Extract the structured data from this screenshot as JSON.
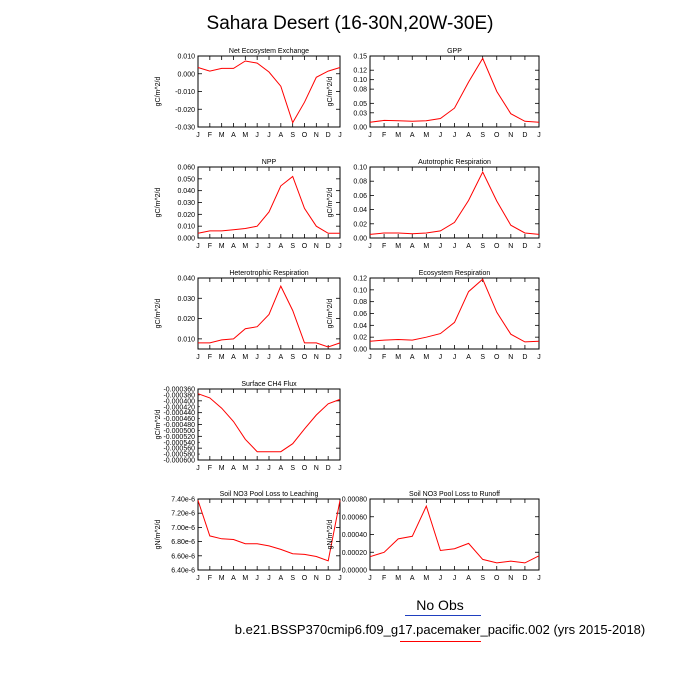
{
  "title": "Sahara Desert (16-30N,20W-30E)",
  "legend": {
    "label": "No Obs",
    "line_colors": [
      "#1f3fbf",
      "#ff0000"
    ]
  },
  "footer": "b.e21.BSSP370cmip6.f09_g17.pacemaker_pacific.002 (yrs 2015-2018)",
  "chart_data": [
    {
      "type": "line",
      "title": "Net Ecosystem Exchange",
      "ylabel": "gC/m^2/d",
      "categories": [
        "J",
        "F",
        "M",
        "A",
        "M",
        "J",
        "J",
        "A",
        "S",
        "O",
        "N",
        "D",
        "J"
      ],
      "ylim": [
        -0.03,
        0.01
      ],
      "yticks": [
        0.01,
        0.0,
        -0.01,
        -0.02,
        -0.03
      ],
      "yticklabels": [
        "0.010",
        "0.000",
        "-0.010",
        "-0.020",
        "-0.030"
      ],
      "color": "#ff0000",
      "values": [
        0.0035,
        0.0015,
        0.003,
        0.003,
        0.0072,
        0.006,
        0.001,
        -0.007,
        -0.0275,
        -0.016,
        -0.002,
        0.0015,
        0.0035
      ]
    },
    {
      "type": "line",
      "title": "GPP",
      "ylabel": "gC/m^2/d",
      "categories": [
        "J",
        "F",
        "M",
        "A",
        "M",
        "J",
        "J",
        "A",
        "S",
        "O",
        "N",
        "D",
        "J"
      ],
      "ylim": [
        0,
        0.15
      ],
      "yticks": [
        0.15,
        0.12,
        0.1,
        0.08,
        0.05,
        0.03,
        0.0
      ],
      "yticklabels": [
        "0.15",
        "0.12",
        "0.10",
        "0.08",
        "0.05",
        "0.03",
        "0.00"
      ],
      "color": "#ff0000",
      "values": [
        0.01,
        0.014,
        0.013,
        0.012,
        0.013,
        0.018,
        0.04,
        0.095,
        0.145,
        0.075,
        0.028,
        0.012,
        0.01
      ]
    },
    {
      "type": "line",
      "title": "NPP",
      "ylabel": "gC/m^2/d",
      "categories": [
        "J",
        "F",
        "M",
        "A",
        "M",
        "J",
        "J",
        "A",
        "S",
        "O",
        "N",
        "D",
        "J"
      ],
      "ylim": [
        0,
        0.06
      ],
      "yticks": [
        0.06,
        0.05,
        0.04,
        0.03,
        0.02,
        0.01,
        0.0
      ],
      "yticklabels": [
        "0.060",
        "0.050",
        "0.040",
        "0.030",
        "0.020",
        "0.010",
        "0.000"
      ],
      "color": "#ff0000",
      "values": [
        0.004,
        0.006,
        0.006,
        0.007,
        0.008,
        0.01,
        0.022,
        0.044,
        0.052,
        0.025,
        0.01,
        0.004,
        0.004
      ]
    },
    {
      "type": "line",
      "title": "Autotrophic Respiration",
      "ylabel": "gC/m^2/d",
      "categories": [
        "J",
        "F",
        "M",
        "A",
        "M",
        "J",
        "J",
        "A",
        "S",
        "O",
        "N",
        "D",
        "J"
      ],
      "ylim": [
        0,
        0.1
      ],
      "yticks": [
        0.1,
        0.08,
        0.06,
        0.04,
        0.02,
        0.0
      ],
      "yticklabels": [
        "0.10",
        "0.08",
        "0.06",
        "0.04",
        "0.02",
        "0.00"
      ],
      "color": "#ff0000",
      "values": [
        0.005,
        0.007,
        0.007,
        0.006,
        0.007,
        0.01,
        0.022,
        0.053,
        0.093,
        0.052,
        0.018,
        0.007,
        0.005
      ]
    },
    {
      "type": "line",
      "title": "Heterotrophic Respiration",
      "ylabel": "gC/m^2/d",
      "categories": [
        "J",
        "F",
        "M",
        "A",
        "M",
        "J",
        "J",
        "A",
        "S",
        "O",
        "N",
        "D",
        "J"
      ],
      "ylim": [
        0.005,
        0.04
      ],
      "yticks": [
        0.04,
        0.03,
        0.02,
        0.01
      ],
      "yticklabels": [
        "0.040",
        "0.030",
        "0.020",
        "0.010"
      ],
      "color": "#ff0000",
      "values": [
        0.008,
        0.008,
        0.0095,
        0.01,
        0.015,
        0.016,
        0.022,
        0.036,
        0.024,
        0.008,
        0.008,
        0.006,
        0.008
      ]
    },
    {
      "type": "line",
      "title": "Ecosystem Respiration",
      "ylabel": "gC/m^2/d",
      "categories": [
        "J",
        "F",
        "M",
        "A",
        "M",
        "J",
        "J",
        "A",
        "S",
        "O",
        "N",
        "D",
        "J"
      ],
      "ylim": [
        0,
        0.12
      ],
      "yticks": [
        0.12,
        0.1,
        0.08,
        0.06,
        0.04,
        0.02,
        0.0
      ],
      "yticklabels": [
        "0.12",
        "0.10",
        "0.08",
        "0.06",
        "0.04",
        "0.02",
        "0.00"
      ],
      "color": "#ff0000",
      "values": [
        0.013,
        0.015,
        0.016,
        0.015,
        0.02,
        0.026,
        0.045,
        0.097,
        0.118,
        0.062,
        0.025,
        0.012,
        0.013
      ]
    },
    {
      "type": "line",
      "title": "Surface CH4 Flux",
      "ylabel": "gC/m^2/d",
      "categories": [
        "J",
        "F",
        "M",
        "A",
        "M",
        "J",
        "J",
        "A",
        "S",
        "O",
        "N",
        "D",
        "J"
      ],
      "ylim": [
        -0.0006,
        -0.00036
      ],
      "yticks": [
        -0.00036,
        -0.0004,
        -0.00044,
        -0.00048,
        -0.00052,
        -0.00056,
        -0.0006
      ],
      "yticklabels": [
        "-0.000360",
        "-0.000400",
        "-0.000440",
        "-0.000480",
        "-0.000520",
        "-0.000560",
        "-0.000600"
      ],
      "yminorticks": [
        -0.00038,
        -0.00042,
        -0.00046,
        -0.0005,
        -0.00054,
        -0.00058
      ],
      "yminorlabels": [
        "-0.000380",
        "-0.000420",
        "-0.000460",
        "-0.000500",
        "-0.000540",
        "-0.000580"
      ],
      "color": "#ff0000",
      "values": [
        -0.000376,
        -0.00039,
        -0.000425,
        -0.00047,
        -0.00053,
        -0.000572,
        -0.000572,
        -0.000572,
        -0.000545,
        -0.000495,
        -0.000448,
        -0.00041,
        -0.000395
      ]
    },
    {
      "type": "line",
      "title": "Soil NO3 Pool Loss to Leaching",
      "ylabel": "gN/m^2/d",
      "categories": [
        "J",
        "F",
        "M",
        "A",
        "M",
        "J",
        "J",
        "A",
        "S",
        "O",
        "N",
        "D",
        "J"
      ],
      "ylim": [
        6.4e-06,
        7.4e-06
      ],
      "yticks": [
        7.4e-06,
        7.2e-06,
        7e-06,
        6.8e-06,
        6.6e-06,
        6.4e-06
      ],
      "yticklabels": [
        "7.40e-6",
        "7.20e-6",
        "7.00e-6",
        "6.80e-6",
        "6.60e-6",
        "6.40e-6"
      ],
      "color": "#ff0000",
      "values": [
        7.38e-06,
        6.88e-06,
        6.84e-06,
        6.83e-06,
        6.77e-06,
        6.77e-06,
        6.74e-06,
        6.69e-06,
        6.63e-06,
        6.62e-06,
        6.59e-06,
        6.53e-06,
        7.38e-06
      ]
    },
    {
      "type": "line",
      "title": "Soil NO3 Pool Loss to Runoff",
      "ylabel": "gN/m^2/d",
      "categories": [
        "J",
        "F",
        "M",
        "A",
        "M",
        "J",
        "J",
        "A",
        "S",
        "O",
        "N",
        "D",
        "J"
      ],
      "ylim": [
        0,
        0.0008
      ],
      "yticks": [
        0.0008,
        0.0006,
        0.0004,
        0.0002,
        0.0
      ],
      "yticklabels": [
        "0.00080",
        "0.00060",
        "0.00040",
        "0.00020",
        "0.00000"
      ],
      "color": "#ff0000",
      "values": [
        0.00015,
        0.0002,
        0.00035,
        0.00038,
        0.00072,
        0.00022,
        0.00024,
        0.0003,
        0.00012,
        8e-05,
        0.0001,
        8e-05,
        0.00016
      ]
    }
  ]
}
